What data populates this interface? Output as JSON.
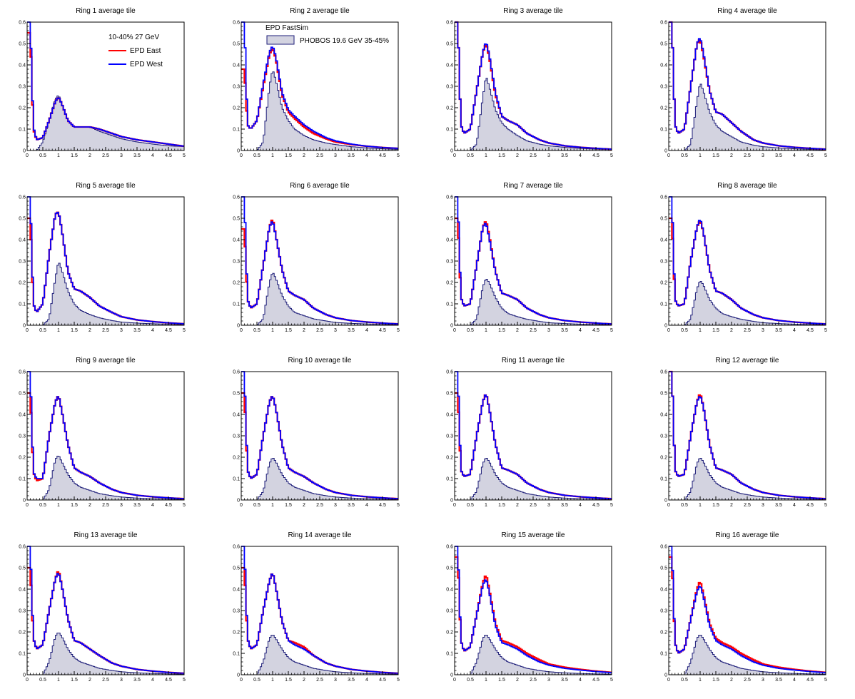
{
  "legends": {
    "panel1_header": "10-40% 27 GeV",
    "east_label": "EPD East",
    "west_label": "EPD West",
    "panel2_header": "EPD FastSim",
    "phobos_label": "PHOBOS 19.6 GeV 35-45%"
  },
  "colors": {
    "east": "#ff0000",
    "west": "#0000ff",
    "phobos_line": "#1c1c78",
    "phobos_fill": "#d3d3e0"
  },
  "chart_data": {
    "type": "histogram-grid",
    "layout": "4x4",
    "xlim": [
      0,
      5
    ],
    "ylim": [
      0,
      0.6
    ],
    "x_ticks": [
      "0",
      "0.5",
      "1",
      "1.5",
      "2",
      "2.5",
      "3",
      "3.5",
      "4",
      "4.5",
      "5"
    ],
    "y_ticks": [
      "0",
      "0.1",
      "0.2",
      "0.3",
      "0.4",
      "0.5",
      "0.6"
    ],
    "x_sample": [
      0.1,
      0.2,
      0.3,
      0.5,
      0.7,
      0.9,
      1.0,
      1.1,
      1.3,
      1.5,
      1.7,
      2.0,
      2.3,
      2.7,
      3.0,
      3.5,
      4.0,
      4.5,
      5.0
    ],
    "phobos_by_ring": [
      [
        0,
        0,
        0,
        0.04,
        0.14,
        0.24,
        0.26,
        0.22,
        0.14,
        0.11,
        0.11,
        0.11,
        0.09,
        0.07,
        0.055,
        0.04,
        0.03,
        0.022,
        0.018
      ],
      [
        0,
        0,
        0,
        0.0,
        0.04,
        0.3,
        0.38,
        0.33,
        0.2,
        0.14,
        0.1,
        0.07,
        0.05,
        0.035,
        0.028,
        0.018,
        0.012,
        0.008,
        0.005
      ],
      [
        0,
        0,
        0,
        0.0,
        0.03,
        0.25,
        0.35,
        0.3,
        0.19,
        0.13,
        0.1,
        0.07,
        0.045,
        0.03,
        0.022,
        0.015,
        0.01,
        0.006,
        0.004
      ],
      [
        0,
        0,
        0,
        0.0,
        0.03,
        0.23,
        0.32,
        0.28,
        0.18,
        0.12,
        0.09,
        0.065,
        0.04,
        0.025,
        0.018,
        0.012,
        0.008,
        0.005,
        0.003
      ],
      [
        0,
        0,
        0,
        0.0,
        0.03,
        0.22,
        0.3,
        0.26,
        0.16,
        0.1,
        0.07,
        0.05,
        0.035,
        0.022,
        0.015,
        0.01,
        0.007,
        0.005,
        0.003
      ],
      [
        0,
        0,
        0,
        0.0,
        0.03,
        0.2,
        0.25,
        0.22,
        0.14,
        0.09,
        0.06,
        0.045,
        0.03,
        0.02,
        0.013,
        0.009,
        0.006,
        0.004,
        0.003
      ],
      [
        0,
        0,
        0,
        0.0,
        0.03,
        0.18,
        0.22,
        0.2,
        0.13,
        0.08,
        0.055,
        0.04,
        0.028,
        0.018,
        0.012,
        0.008,
        0.005,
        0.004,
        0.003
      ],
      [
        0,
        0,
        0,
        0.0,
        0.03,
        0.17,
        0.21,
        0.19,
        0.12,
        0.08,
        0.055,
        0.04,
        0.028,
        0.018,
        0.012,
        0.008,
        0.005,
        0.004,
        0.003
      ],
      [
        0,
        0,
        0,
        0.0,
        0.05,
        0.19,
        0.21,
        0.18,
        0.12,
        0.08,
        0.06,
        0.045,
        0.03,
        0.02,
        0.014,
        0.009,
        0.006,
        0.004,
        0.003
      ],
      [
        0,
        0,
        0,
        0.0,
        0.04,
        0.17,
        0.2,
        0.18,
        0.12,
        0.08,
        0.06,
        0.045,
        0.03,
        0.02,
        0.014,
        0.009,
        0.006,
        0.004,
        0.003
      ],
      [
        0,
        0,
        0,
        0.0,
        0.04,
        0.17,
        0.2,
        0.18,
        0.12,
        0.08,
        0.06,
        0.045,
        0.03,
        0.02,
        0.014,
        0.009,
        0.006,
        0.004,
        0.003
      ],
      [
        0,
        0,
        0,
        0.0,
        0.04,
        0.17,
        0.2,
        0.18,
        0.12,
        0.08,
        0.06,
        0.045,
        0.03,
        0.02,
        0.014,
        0.009,
        0.006,
        0.004,
        0.003
      ],
      [
        0,
        0,
        0,
        0.0,
        0.06,
        0.18,
        0.2,
        0.18,
        0.12,
        0.08,
        0.06,
        0.045,
        0.03,
        0.02,
        0.014,
        0.009,
        0.006,
        0.004,
        0.003
      ],
      [
        0,
        0,
        0,
        0.0,
        0.06,
        0.17,
        0.19,
        0.17,
        0.12,
        0.08,
        0.06,
        0.045,
        0.03,
        0.02,
        0.014,
        0.009,
        0.006,
        0.004,
        0.003
      ],
      [
        0,
        0,
        0,
        0.0,
        0.06,
        0.17,
        0.19,
        0.17,
        0.12,
        0.08,
        0.06,
        0.045,
        0.03,
        0.02,
        0.014,
        0.009,
        0.006,
        0.004,
        0.003
      ],
      [
        0,
        0,
        0,
        0.0,
        0.06,
        0.17,
        0.19,
        0.17,
        0.12,
        0.08,
        0.06,
        0.045,
        0.03,
        0.02,
        0.014,
        0.009,
        0.006,
        0.004,
        0.003
      ]
    ],
    "panels": [
      {
        "title": "Ring 1 average tile",
        "east": [
          0.55,
          0.1,
          0.05,
          0.06,
          0.14,
          0.23,
          0.25,
          0.22,
          0.14,
          0.11,
          0.11,
          0.11,
          0.1,
          0.08,
          0.065,
          0.05,
          0.04,
          0.03,
          0.02
        ],
        "west": [
          0.6,
          0.11,
          0.05,
          0.06,
          0.14,
          0.23,
          0.25,
          0.22,
          0.14,
          0.11,
          0.11,
          0.11,
          0.1,
          0.08,
          0.065,
          0.05,
          0.04,
          0.03,
          0.02
        ]
      },
      {
        "title": "Ring 2 average tile",
        "east": [
          0.38,
          0.12,
          0.1,
          0.14,
          0.3,
          0.45,
          0.48,
          0.43,
          0.26,
          0.18,
          0.15,
          0.11,
          0.08,
          0.055,
          0.04,
          0.028,
          0.02,
          0.014,
          0.01
        ],
        "west": [
          0.6,
          0.12,
          0.1,
          0.14,
          0.31,
          0.46,
          0.49,
          0.44,
          0.27,
          0.19,
          0.16,
          0.12,
          0.09,
          0.06,
          0.045,
          0.03,
          0.02,
          0.014,
          0.01
        ]
      },
      {
        "title": "Ring 3 average tile",
        "east": [
          0.6,
          0.12,
          0.08,
          0.1,
          0.28,
          0.46,
          0.5,
          0.44,
          0.26,
          0.16,
          0.14,
          0.12,
          0.08,
          0.05,
          0.035,
          0.022,
          0.015,
          0.01,
          0.006
        ],
        "west": [
          0.6,
          0.12,
          0.08,
          0.1,
          0.28,
          0.46,
          0.51,
          0.45,
          0.27,
          0.16,
          0.14,
          0.12,
          0.08,
          0.05,
          0.035,
          0.022,
          0.015,
          0.01,
          0.006
        ]
      },
      {
        "title": "Ring 4 average tile",
        "east": [
          0.6,
          0.12,
          0.08,
          0.1,
          0.3,
          0.5,
          0.52,
          0.45,
          0.28,
          0.18,
          0.17,
          0.13,
          0.09,
          0.05,
          0.035,
          0.022,
          0.015,
          0.01,
          0.006
        ],
        "west": [
          0.6,
          0.12,
          0.08,
          0.1,
          0.3,
          0.5,
          0.53,
          0.46,
          0.28,
          0.18,
          0.17,
          0.13,
          0.09,
          0.05,
          0.035,
          0.022,
          0.015,
          0.01,
          0.006
        ]
      },
      {
        "title": "Ring 5 average tile",
        "east": [
          0.5,
          0.1,
          0.06,
          0.1,
          0.33,
          0.52,
          0.53,
          0.45,
          0.25,
          0.17,
          0.16,
          0.13,
          0.09,
          0.06,
          0.04,
          0.025,
          0.017,
          0.011,
          0.007
        ],
        "west": [
          0.6,
          0.1,
          0.06,
          0.1,
          0.33,
          0.52,
          0.53,
          0.45,
          0.25,
          0.17,
          0.16,
          0.13,
          0.09,
          0.06,
          0.04,
          0.025,
          0.017,
          0.011,
          0.007
        ]
      },
      {
        "title": "Ring 6 average tile",
        "east": [
          0.45,
          0.12,
          0.08,
          0.1,
          0.28,
          0.46,
          0.5,
          0.42,
          0.26,
          0.16,
          0.14,
          0.12,
          0.08,
          0.05,
          0.035,
          0.022,
          0.015,
          0.01,
          0.006
        ],
        "west": [
          0.6,
          0.12,
          0.08,
          0.1,
          0.28,
          0.46,
          0.49,
          0.42,
          0.26,
          0.16,
          0.14,
          0.12,
          0.08,
          0.05,
          0.035,
          0.022,
          0.015,
          0.01,
          0.006
        ]
      },
      {
        "title": "Ring 7 average tile",
        "east": [
          0.5,
          0.13,
          0.09,
          0.1,
          0.28,
          0.46,
          0.49,
          0.42,
          0.25,
          0.15,
          0.14,
          0.12,
          0.08,
          0.05,
          0.035,
          0.022,
          0.015,
          0.01,
          0.006
        ],
        "west": [
          0.6,
          0.13,
          0.09,
          0.1,
          0.28,
          0.46,
          0.48,
          0.41,
          0.25,
          0.15,
          0.14,
          0.12,
          0.08,
          0.05,
          0.035,
          0.022,
          0.015,
          0.01,
          0.006
        ]
      },
      {
        "title": "Ring 8 average tile",
        "east": [
          0.5,
          0.12,
          0.09,
          0.1,
          0.3,
          0.46,
          0.49,
          0.44,
          0.26,
          0.16,
          0.15,
          0.12,
          0.08,
          0.05,
          0.035,
          0.022,
          0.015,
          0.01,
          0.006
        ],
        "west": [
          0.6,
          0.12,
          0.09,
          0.1,
          0.3,
          0.46,
          0.5,
          0.44,
          0.26,
          0.16,
          0.15,
          0.12,
          0.08,
          0.05,
          0.035,
          0.022,
          0.015,
          0.01,
          0.006
        ]
      },
      {
        "title": "Ring 9 average tile",
        "east": [
          0.5,
          0.13,
          0.09,
          0.1,
          0.3,
          0.46,
          0.49,
          0.42,
          0.26,
          0.15,
          0.13,
          0.11,
          0.08,
          0.05,
          0.035,
          0.022,
          0.015,
          0.01,
          0.006
        ],
        "west": [
          0.6,
          0.13,
          0.1,
          0.1,
          0.3,
          0.46,
          0.49,
          0.42,
          0.26,
          0.15,
          0.13,
          0.11,
          0.08,
          0.05,
          0.035,
          0.022,
          0.015,
          0.01,
          0.006
        ]
      },
      {
        "title": "Ring 10 average tile",
        "east": [
          0.5,
          0.14,
          0.1,
          0.12,
          0.3,
          0.46,
          0.49,
          0.43,
          0.26,
          0.15,
          0.13,
          0.11,
          0.08,
          0.05,
          0.035,
          0.022,
          0.015,
          0.01,
          0.006
        ],
        "west": [
          0.6,
          0.14,
          0.1,
          0.12,
          0.3,
          0.46,
          0.49,
          0.43,
          0.26,
          0.15,
          0.13,
          0.11,
          0.08,
          0.05,
          0.035,
          0.022,
          0.015,
          0.01,
          0.006
        ]
      },
      {
        "title": "Ring 11 average tile",
        "east": [
          0.5,
          0.14,
          0.11,
          0.12,
          0.3,
          0.46,
          0.5,
          0.43,
          0.26,
          0.15,
          0.14,
          0.12,
          0.08,
          0.05,
          0.035,
          0.022,
          0.015,
          0.01,
          0.006
        ],
        "west": [
          0.6,
          0.14,
          0.11,
          0.12,
          0.3,
          0.46,
          0.5,
          0.43,
          0.26,
          0.15,
          0.14,
          0.12,
          0.08,
          0.05,
          0.035,
          0.022,
          0.015,
          0.01,
          0.006
        ]
      },
      {
        "title": "Ring 12 average tile",
        "east": [
          0.6,
          0.14,
          0.11,
          0.12,
          0.3,
          0.46,
          0.5,
          0.44,
          0.26,
          0.15,
          0.14,
          0.12,
          0.08,
          0.05,
          0.035,
          0.022,
          0.015,
          0.01,
          0.006
        ],
        "west": [
          0.6,
          0.14,
          0.11,
          0.12,
          0.3,
          0.46,
          0.49,
          0.44,
          0.26,
          0.15,
          0.14,
          0.12,
          0.08,
          0.05,
          0.035,
          0.022,
          0.015,
          0.01,
          0.006
        ]
      },
      {
        "title": "Ring 13 average tile",
        "east": [
          0.5,
          0.17,
          0.12,
          0.14,
          0.3,
          0.45,
          0.49,
          0.42,
          0.26,
          0.16,
          0.15,
          0.12,
          0.09,
          0.055,
          0.04,
          0.025,
          0.017,
          0.011,
          0.007
        ],
        "west": [
          0.6,
          0.17,
          0.12,
          0.14,
          0.3,
          0.45,
          0.48,
          0.42,
          0.26,
          0.16,
          0.15,
          0.12,
          0.09,
          0.055,
          0.04,
          0.025,
          0.017,
          0.011,
          0.007
        ]
      },
      {
        "title": "Ring 14 average tile",
        "east": [
          0.5,
          0.17,
          0.12,
          0.14,
          0.3,
          0.44,
          0.48,
          0.41,
          0.25,
          0.16,
          0.15,
          0.13,
          0.09,
          0.055,
          0.04,
          0.025,
          0.017,
          0.011,
          0.007
        ],
        "west": [
          0.6,
          0.17,
          0.12,
          0.14,
          0.3,
          0.44,
          0.48,
          0.41,
          0.25,
          0.16,
          0.14,
          0.12,
          0.09,
          0.055,
          0.04,
          0.025,
          0.017,
          0.011,
          0.007
        ]
      },
      {
        "title": "Ring 15 average tile",
        "east": [
          0.55,
          0.16,
          0.11,
          0.13,
          0.28,
          0.43,
          0.47,
          0.4,
          0.24,
          0.16,
          0.15,
          0.13,
          0.1,
          0.07,
          0.05,
          0.035,
          0.025,
          0.017,
          0.011
        ],
        "west": [
          0.6,
          0.16,
          0.11,
          0.13,
          0.28,
          0.42,
          0.45,
          0.39,
          0.23,
          0.15,
          0.14,
          0.12,
          0.09,
          0.06,
          0.045,
          0.03,
          0.022,
          0.015,
          0.01
        ]
      },
      {
        "title": "Ring 16 average tile",
        "east": [
          0.55,
          0.15,
          0.1,
          0.12,
          0.26,
          0.4,
          0.44,
          0.38,
          0.24,
          0.17,
          0.15,
          0.13,
          0.1,
          0.07,
          0.05,
          0.035,
          0.025,
          0.017,
          0.011
        ],
        "west": [
          0.6,
          0.15,
          0.1,
          0.12,
          0.26,
          0.39,
          0.42,
          0.37,
          0.23,
          0.16,
          0.14,
          0.12,
          0.09,
          0.06,
          0.045,
          0.03,
          0.022,
          0.015,
          0.01
        ]
      }
    ]
  }
}
